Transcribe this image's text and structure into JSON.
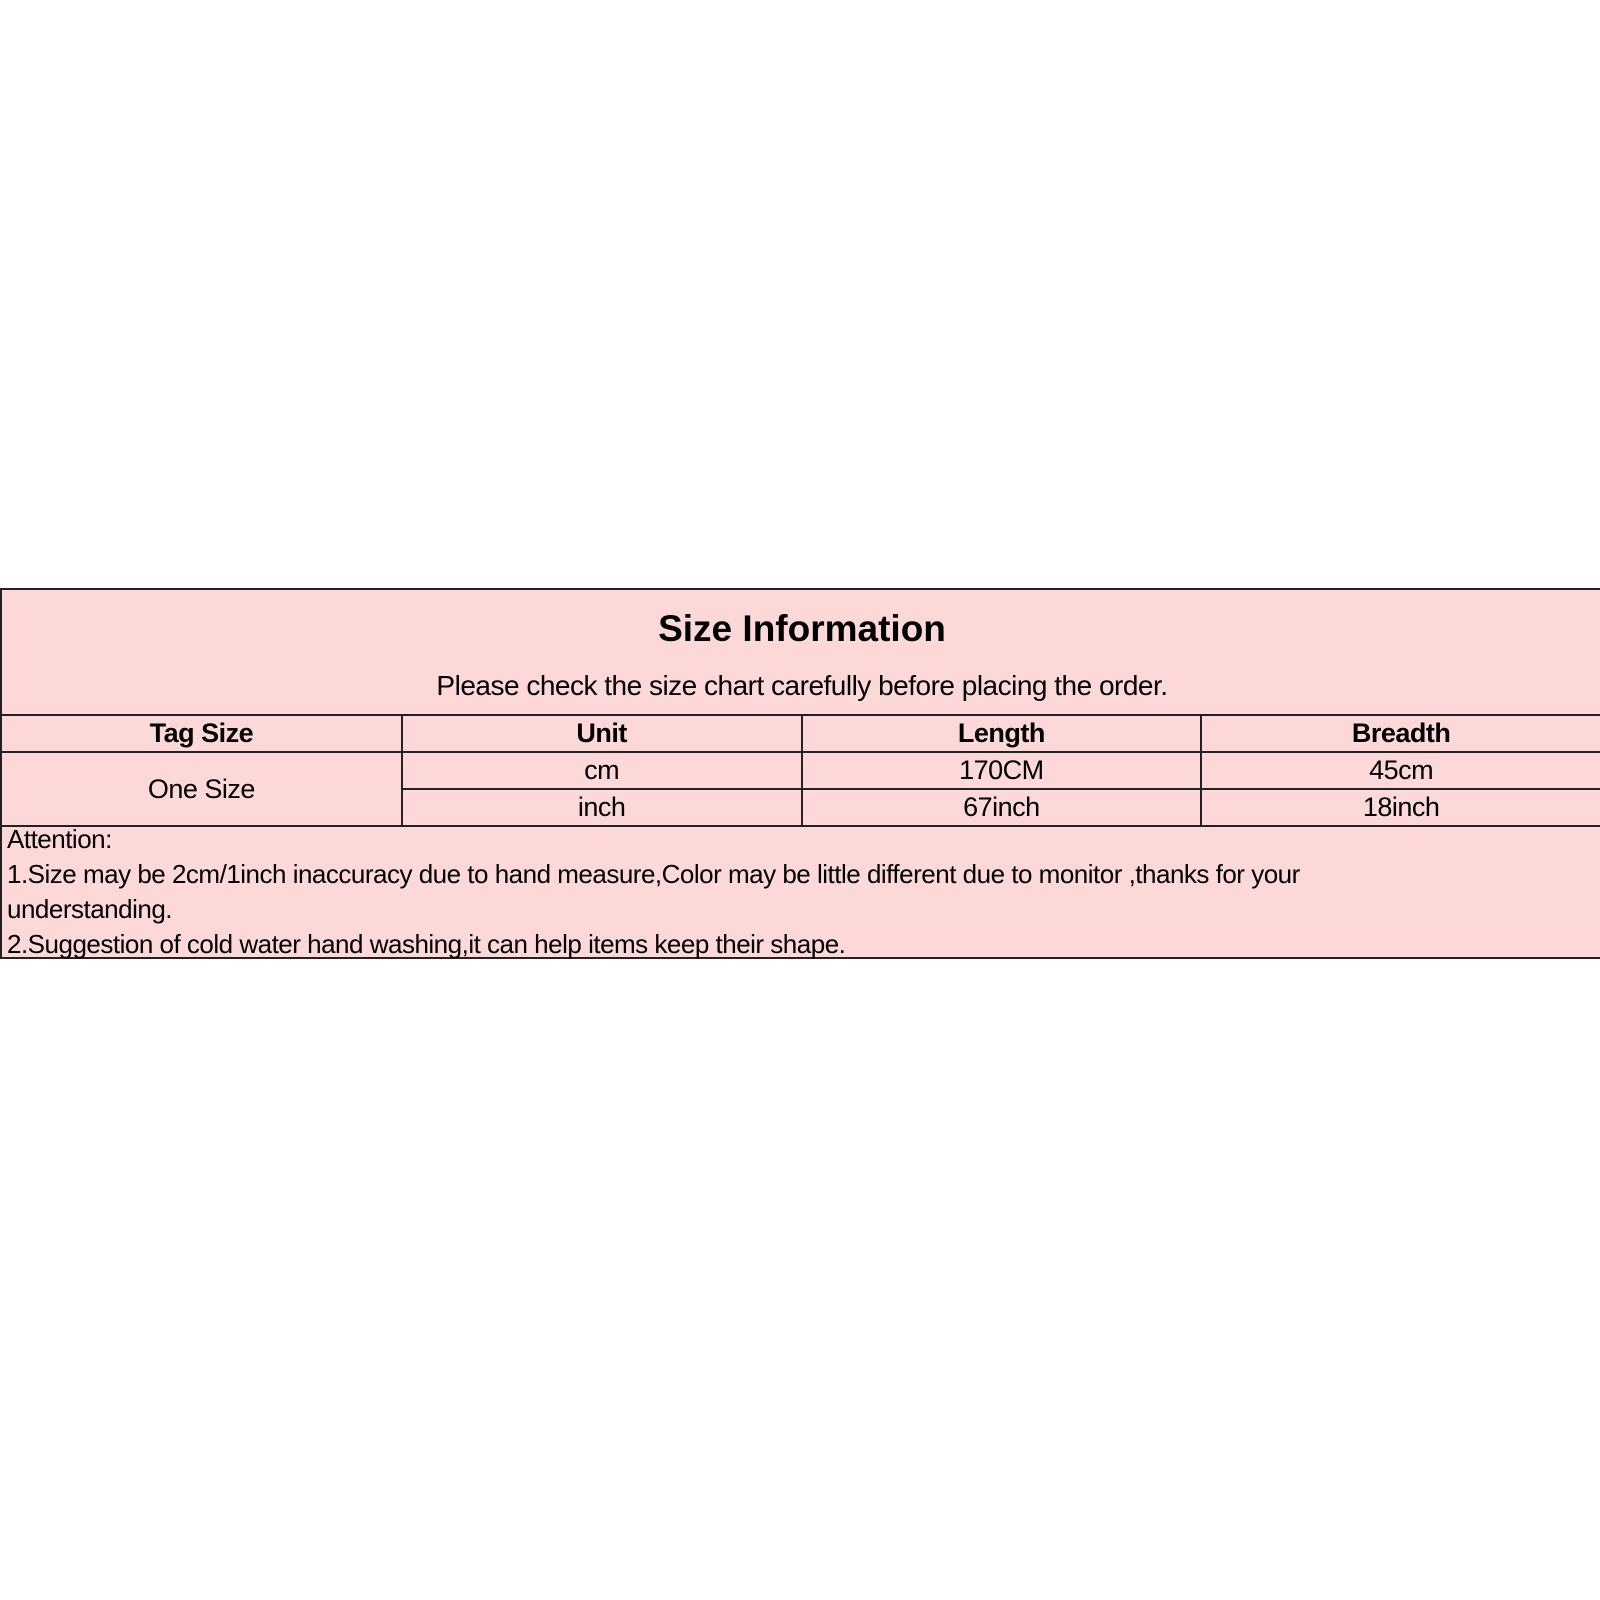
{
  "title": "Size Information",
  "subtitle": "Please check the size chart carefully before placing the order.",
  "table": {
    "headers": [
      "Tag Size",
      "Unit",
      "Length",
      "Breadth"
    ],
    "tag_size": "One Size",
    "rows": [
      {
        "unit": "cm",
        "length": "170CM",
        "breadth": "45cm"
      },
      {
        "unit": "inch",
        "length": "67inch",
        "breadth": "18inch"
      }
    ]
  },
  "notes": {
    "heading": "Attention:",
    "lines": [
      "1.Size may be 2cm/1inch inaccuracy due to hand measure,Color may be little different due to monitor ,thanks  for your",
      "understanding.",
      "2.Suggestion of cold water hand washing,it can help items keep their shape."
    ]
  },
  "colors": {
    "background": "#fcd9d8",
    "border": "#222222"
  }
}
